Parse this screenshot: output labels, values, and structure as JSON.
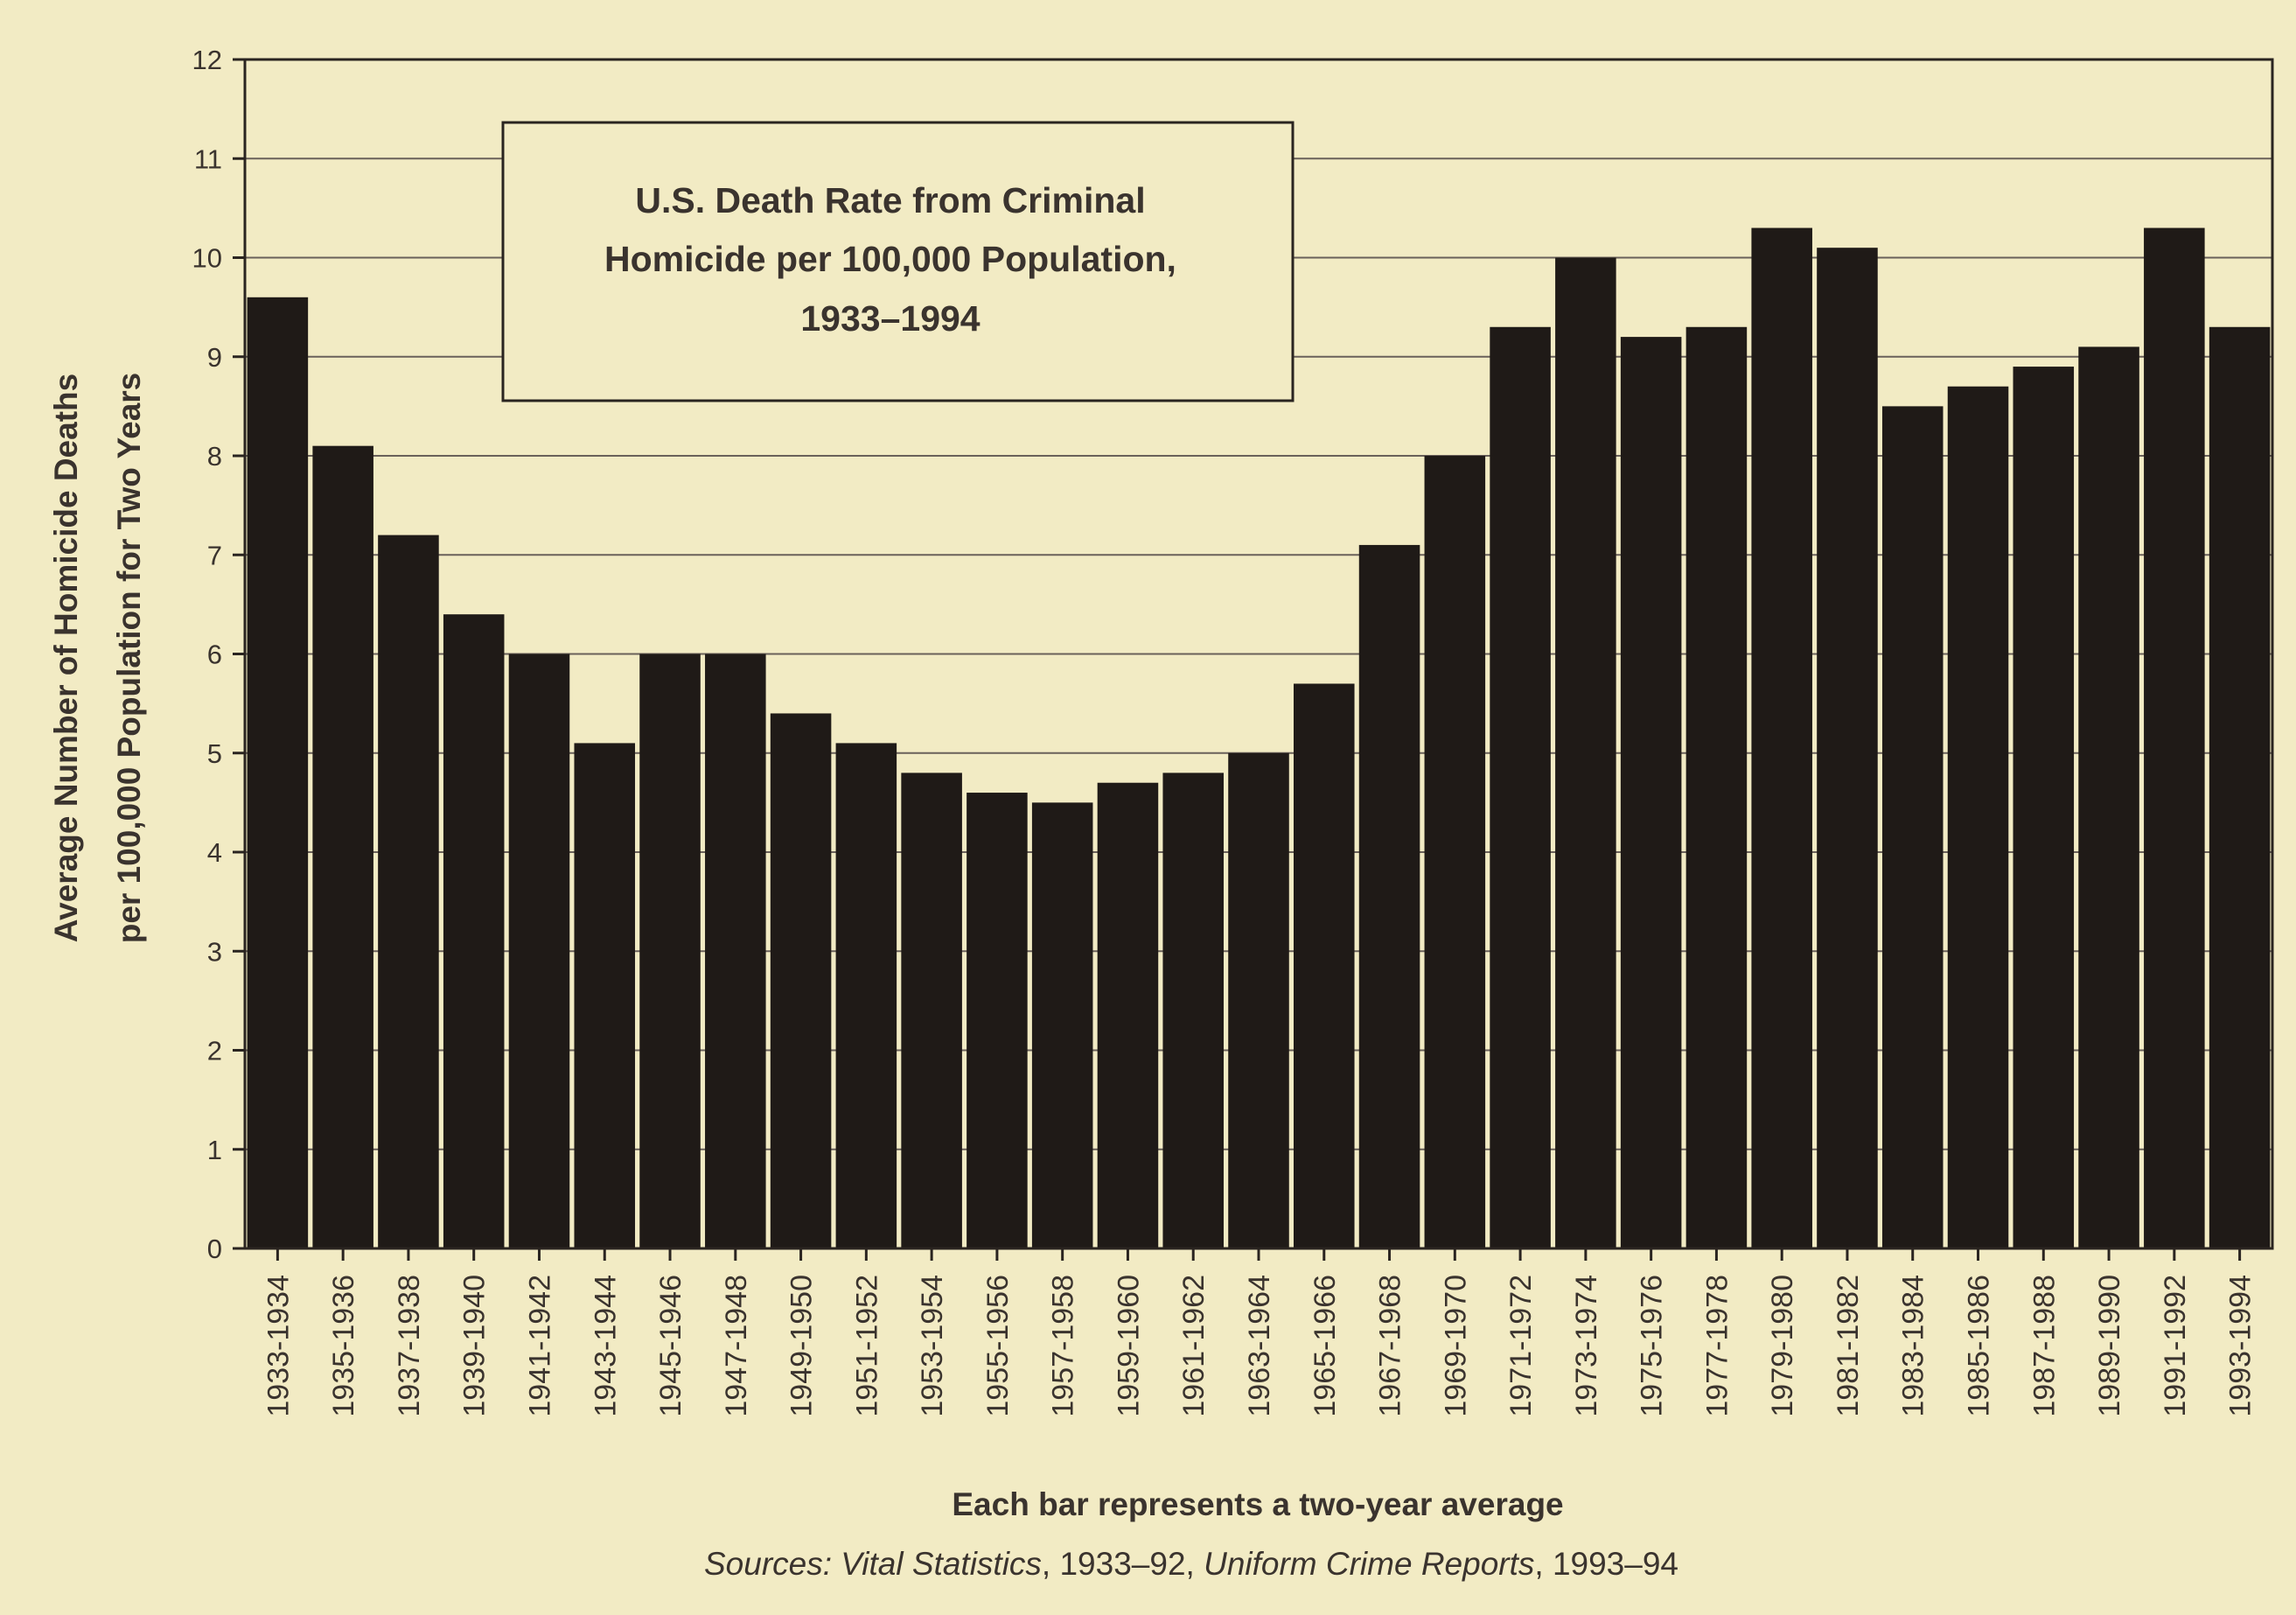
{
  "chart_data": {
    "type": "bar",
    "title": [
      "U.S. Death Rate from Criminal",
      "Homicide per 100,000 Population,",
      "1933–1994"
    ],
    "ylabel": [
      "Average Number of Homicide Deaths",
      "per 100,000 Population for Two Years"
    ],
    "xlabel": "Each bar represents a two-year average",
    "sources": {
      "prefix": "Sources: ",
      "source1": "Vital Statistics",
      "mid": ", 1933–92, ",
      "source2": "Uniform Crime Reports",
      "suffix": ", 1993–94"
    },
    "ylim": [
      0,
      12
    ],
    "yticks": [
      0,
      1,
      2,
      3,
      4,
      5,
      6,
      7,
      8,
      9,
      10,
      11,
      12
    ],
    "grid": true,
    "categories": [
      "1933-1934",
      "1935-1936",
      "1937-1938",
      "1939-1940",
      "1941-1942",
      "1943-1944",
      "1945-1946",
      "1947-1948",
      "1949-1950",
      "1951-1952",
      "1953-1954",
      "1955-1956",
      "1957-1958",
      "1959-1960",
      "1961-1962",
      "1963-1964",
      "1965-1966",
      "1967-1968",
      "1969-1970",
      "1971-1972",
      "1973-1974",
      "1975-1976",
      "1977-1978",
      "1979-1980",
      "1981-1982",
      "1983-1984",
      "1985-1986",
      "1987-1988",
      "1989-1990",
      "1991-1992",
      "1993-1994"
    ],
    "values": [
      9.6,
      8.1,
      7.2,
      6.4,
      6.0,
      5.1,
      6.0,
      6.0,
      5.4,
      5.1,
      4.8,
      4.6,
      4.5,
      4.7,
      4.8,
      5.0,
      5.7,
      7.1,
      8.0,
      9.3,
      10.0,
      9.2,
      9.3,
      10.3,
      10.1,
      8.5,
      8.7,
      8.9,
      9.1,
      10.3,
      9.3
    ],
    "colors": {
      "background": "#f2ebc4",
      "bar": "#1f1a17",
      "text": "#3a332e"
    }
  }
}
